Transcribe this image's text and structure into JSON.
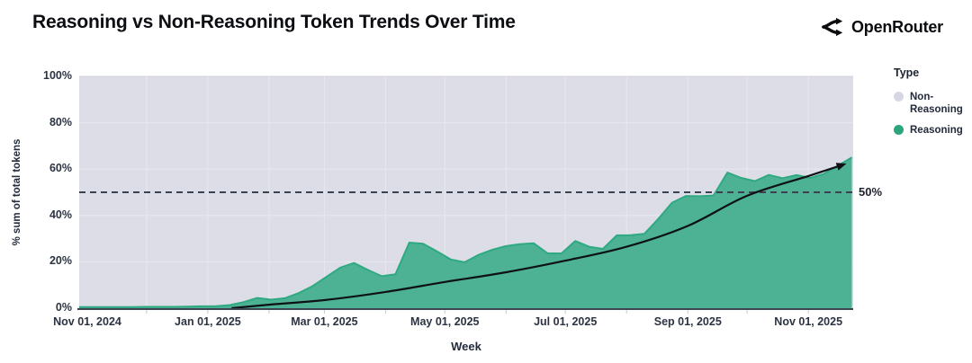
{
  "header": {
    "title": "Reasoning vs Non-Reasoning Token Trends Over Time",
    "brand": {
      "name": "OpenRouter",
      "icon": "openrouter-logo-icon"
    }
  },
  "chart_data": {
    "type": "area",
    "title": "Reasoning vs Non-Reasoning Token Trends Over Time",
    "xlabel": "Week",
    "ylabel": "% sum of total tokens",
    "ylim": [
      0,
      100
    ],
    "grid": true,
    "legend_position": "right",
    "y_ticks": [
      "0%",
      "20%",
      "40%",
      "60%",
      "80%",
      "100%"
    ],
    "x_ticks": [
      {
        "label": "Nov 01, 2024",
        "date": "2024-11-01"
      },
      {
        "label": "Jan 01, 2025",
        "date": "2025-01-01"
      },
      {
        "label": "Mar 01, 2025",
        "date": "2025-03-01"
      },
      {
        "label": "May 01, 2025",
        "date": "2025-05-01"
      },
      {
        "label": "Jul 01, 2025",
        "date": "2025-07-01"
      },
      {
        "label": "Sep 01, 2025",
        "date": "2025-09-01"
      },
      {
        "label": "Nov 01, 2025",
        "date": "2025-11-01"
      }
    ],
    "legend": {
      "title": "Type",
      "items": [
        {
          "label": "Non-Reasoning",
          "color": "#d6d7e2"
        },
        {
          "label": "Reasoning",
          "color": "#2aa57d"
        }
      ]
    },
    "annotation": {
      "label": "50%",
      "value": 50,
      "style": "dashed"
    },
    "series": [
      {
        "name": "Reasoning",
        "unit": "% of total tokens",
        "points": [
          [
            "2024-11-03",
            0.5
          ],
          [
            "2024-11-10",
            0.5
          ],
          [
            "2024-11-17",
            0.5
          ],
          [
            "2024-11-24",
            0.5
          ],
          [
            "2024-12-01",
            0.6
          ],
          [
            "2024-12-08",
            0.6
          ],
          [
            "2024-12-15",
            0.6
          ],
          [
            "2024-12-22",
            0.7
          ],
          [
            "2024-12-29",
            0.8
          ],
          [
            "2025-01-05",
            0.9
          ],
          [
            "2025-01-12",
            1.3
          ],
          [
            "2025-01-19",
            2.6
          ],
          [
            "2025-01-26",
            4.4
          ],
          [
            "2025-02-02",
            3.7
          ],
          [
            "2025-02-09",
            4.3
          ],
          [
            "2025-02-16",
            6.5
          ],
          [
            "2025-02-23",
            9.5
          ],
          [
            "2025-03-02",
            13.5
          ],
          [
            "2025-03-09",
            17.5
          ],
          [
            "2025-03-16",
            19.5
          ],
          [
            "2025-03-23",
            16.5
          ],
          [
            "2025-03-30",
            13.8
          ],
          [
            "2025-04-06",
            14.6
          ],
          [
            "2025-04-13",
            28.3
          ],
          [
            "2025-04-20",
            27.8
          ],
          [
            "2025-04-27",
            24.5
          ],
          [
            "2025-05-04",
            21.0
          ],
          [
            "2025-05-11",
            19.8
          ],
          [
            "2025-05-18",
            23.0
          ],
          [
            "2025-05-25",
            25.2
          ],
          [
            "2025-06-01",
            26.8
          ],
          [
            "2025-06-08",
            27.6
          ],
          [
            "2025-06-15",
            28.0
          ],
          [
            "2025-06-22",
            23.7
          ],
          [
            "2025-06-29",
            23.6
          ],
          [
            "2025-07-06",
            29.0
          ],
          [
            "2025-07-13",
            26.5
          ],
          [
            "2025-07-20",
            25.6
          ],
          [
            "2025-07-27",
            31.4
          ],
          [
            "2025-08-03",
            31.5
          ],
          [
            "2025-08-10",
            32.1
          ],
          [
            "2025-08-17",
            38.5
          ],
          [
            "2025-08-24",
            45.5
          ],
          [
            "2025-08-31",
            48.4
          ],
          [
            "2025-09-07",
            48.3
          ],
          [
            "2025-09-14",
            48.6
          ],
          [
            "2025-09-21",
            58.5
          ],
          [
            "2025-09-28",
            56.2
          ],
          [
            "2025-10-05",
            54.8
          ],
          [
            "2025-10-12",
            57.5
          ],
          [
            "2025-10-19",
            56.1
          ],
          [
            "2025-10-26",
            57.4
          ],
          [
            "2025-11-02",
            56.2
          ],
          [
            "2025-11-09",
            58.0
          ],
          [
            "2025-11-16",
            61.5
          ],
          [
            "2025-11-23",
            65.0
          ]
        ]
      }
    ],
    "trend_line": {
      "arrow": true,
      "points": [
        [
          "2025-01-13",
          0
        ],
        [
          "2025-02-01",
          1.5
        ],
        [
          "2025-03-01",
          3.5
        ],
        [
          "2025-04-01",
          7.0
        ],
        [
          "2025-05-01",
          11.3
        ],
        [
          "2025-06-01",
          15.5
        ],
        [
          "2025-07-01",
          20.5
        ],
        [
          "2025-08-01",
          26.5
        ],
        [
          "2025-09-01",
          35.5
        ],
        [
          "2025-10-01",
          48.5
        ],
        [
          "2025-11-01",
          57.0
        ],
        [
          "2025-11-19",
          62.0
        ]
      ]
    },
    "colors": {
      "plot_background": "#dcdde6",
      "gridline": "#e7e8ef",
      "area_fill": "#4db294",
      "area_stroke": "#2ea981",
      "dashed_line": "#3a4150",
      "trend_line": "#0e1116",
      "axis_line": "#3d4452",
      "minor_tick": "#c7c9d4"
    }
  }
}
